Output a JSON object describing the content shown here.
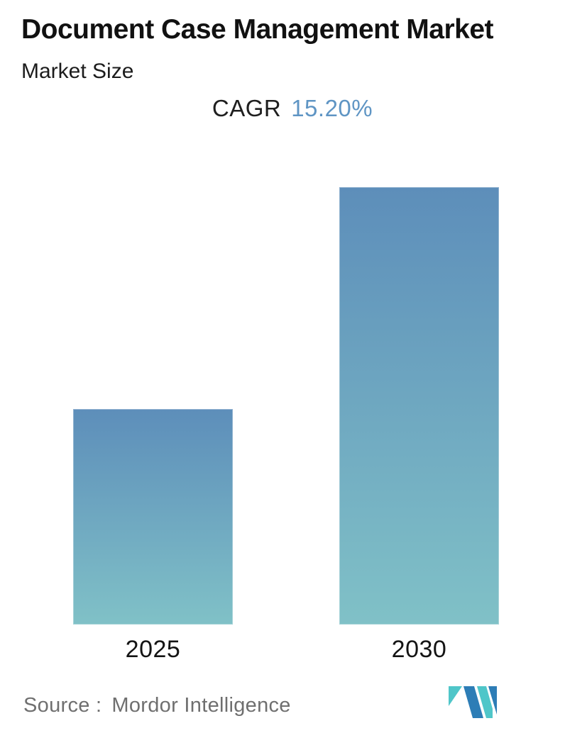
{
  "header": {
    "title": "Document Case Management Market",
    "subtitle": "Market Size",
    "cagr_label": "CAGR",
    "cagr_value": "15.20%"
  },
  "chart_data": {
    "type": "bar",
    "title": "Document Case Management Market",
    "subtitle": "Market Size",
    "categories": [
      "2025",
      "2030"
    ],
    "values": [
      1.0,
      2.03
    ],
    "values_note": "No numeric value axis is shown in the figure; values are relative bar heights indexed to 2025 = 1.0. The 2030 bar is about 2.03x the 2025 bar, consistent with the stated 15.20% CAGR over 2025-2030.",
    "annotations": [
      "CAGR 15.20%"
    ],
    "xlabel": "",
    "ylabel": "",
    "axes_visible": false,
    "grid": false,
    "legend_position": "none",
    "bar_gradient_top": "#5d8eba",
    "bar_gradient_bottom": "#80c1c7"
  },
  "footer": {
    "source_label": "Source :",
    "source_value": "Mordor Intelligence"
  },
  "icons": {
    "logo_name": "mordor-intelligence-logo"
  },
  "colors": {
    "background": "#ffffff",
    "title_text": "#111111",
    "subtitle_text": "#1c1c1c",
    "cagr_label_text": "#1f1f1f",
    "cagr_value_text": "#5f95c4",
    "year_label_text": "#141414",
    "source_text": "#6f6f6f",
    "bar_gradient_top": "#5d8eba",
    "bar_gradient_bottom": "#80c1c7",
    "logo_blue": "#2d7db6",
    "logo_teal": "#4fc6c9"
  }
}
